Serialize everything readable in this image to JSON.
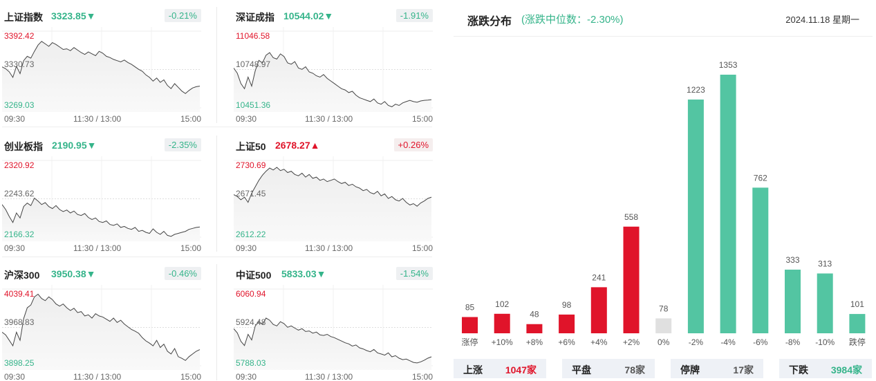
{
  "cards": [
    {
      "name": "上证指数",
      "value": "3323.85",
      "dir": "down",
      "arrow": "▼",
      "change": "-0.21%",
      "hi": "3392.42",
      "mid": "3330.73",
      "lo": "3269.03",
      "series": [
        3335,
        3332,
        3327,
        3318,
        3336,
        3324,
        3345,
        3352,
        3349,
        3360,
        3370,
        3376,
        3372,
        3368,
        3374,
        3371,
        3367,
        3363,
        3364,
        3361,
        3366,
        3362,
        3358,
        3355,
        3359,
        3356,
        3353,
        3360,
        3357,
        3352,
        3350,
        3347,
        3345,
        3343,
        3346,
        3342,
        3339,
        3335,
        3331,
        3328,
        3322,
        3318,
        3312,
        3317,
        3310,
        3314,
        3305,
        3300,
        3308,
        3302,
        3296,
        3292,
        3297,
        3301,
        3303,
        3304
      ]
    },
    {
      "name": "深证成指",
      "value": "10544.02",
      "dir": "down",
      "arrow": "▼",
      "change": "-1.91%",
      "hi": "11046.58",
      "mid": "10748.97",
      "lo": "10451.36",
      "series": [
        10760,
        10720,
        10640,
        10600,
        10690,
        10620,
        10740,
        10820,
        10800,
        10860,
        10880,
        10840,
        10830,
        10870,
        10850,
        10800,
        10790,
        10810,
        10760,
        10750,
        10770,
        10730,
        10720,
        10700,
        10690,
        10710,
        10680,
        10660,
        10640,
        10620,
        10600,
        10590,
        10570,
        10580,
        10550,
        10530,
        10520,
        10510,
        10500,
        10520,
        10490,
        10480,
        10500,
        10470,
        10460,
        10480,
        10470,
        10490,
        10500,
        10510,
        10500,
        10495,
        10505,
        10510,
        10512,
        10515
      ]
    },
    {
      "name": "创业板指",
      "value": "2190.95",
      "dir": "down",
      "arrow": "▼",
      "change": "-2.35%",
      "hi": "2320.92",
      "mid": "2243.62",
      "lo": "2166.32",
      "series": [
        2232,
        2222,
        2208,
        2196,
        2215,
        2205,
        2228,
        2235,
        2230,
        2245,
        2239,
        2232,
        2236,
        2228,
        2224,
        2230,
        2222,
        2218,
        2221,
        2215,
        2219,
        2212,
        2210,
        2214,
        2206,
        2202,
        2205,
        2198,
        2196,
        2199,
        2192,
        2190,
        2193,
        2186,
        2188,
        2184,
        2182,
        2186,
        2178,
        2180,
        2176,
        2174,
        2183,
        2176,
        2172,
        2178,
        2170,
        2168,
        2172,
        2174,
        2176,
        2178,
        2182,
        2184,
        2186,
        2187
      ]
    },
    {
      "name": "上证50",
      "value": "2678.27",
      "dir": "up",
      "arrow": "▲",
      "change": "+0.26%",
      "hi": "2730.69",
      "mid": "2671.45",
      "lo": "2612.22",
      "series": [
        2678,
        2675,
        2670,
        2674,
        2666,
        2680,
        2690,
        2700,
        2708,
        2714,
        2719,
        2716,
        2720,
        2715,
        2717,
        2712,
        2714,
        2709,
        2707,
        2711,
        2705,
        2709,
        2703,
        2705,
        2700,
        2702,
        2698,
        2700,
        2702,
        2698,
        2695,
        2697,
        2692,
        2694,
        2690,
        2688,
        2684,
        2686,
        2681,
        2679,
        2683,
        2676,
        2679,
        2672,
        2675,
        2670,
        2668,
        2672,
        2666,
        2662,
        2664,
        2660,
        2665,
        2668,
        2672,
        2674
      ]
    },
    {
      "name": "沪深300",
      "value": "3950.38",
      "dir": "down",
      "arrow": "▼",
      "change": "-0.46%",
      "hi": "4039.41",
      "mid": "3968.83",
      "lo": "3898.25",
      "series": [
        3960,
        3955,
        3945,
        3935,
        3960,
        3945,
        3985,
        4005,
        4010,
        4025,
        4030,
        4022,
        4018,
        4025,
        4020,
        4012,
        4008,
        4012,
        4005,
        4000,
        4004,
        3996,
        3998,
        3990,
        3992,
        3986,
        3994,
        3990,
        3988,
        3984,
        3980,
        3986,
        3978,
        3982,
        3975,
        3970,
        3965,
        3962,
        3958,
        3950,
        3944,
        3940,
        3935,
        3945,
        3932,
        3938,
        3925,
        3920,
        3930,
        3915,
        3912,
        3908,
        3915,
        3920,
        3925,
        3928
      ]
    },
    {
      "name": "中证500",
      "value": "5833.03",
      "dir": "down",
      "arrow": "▼",
      "change": "-1.54%",
      "hi": "6060.94",
      "mid": "5924.48",
      "lo": "5788.03",
      "series": [
        5920,
        5905,
        5875,
        5860,
        5900,
        5880,
        5930,
        5945,
        5935,
        5958,
        5950,
        5935,
        5930,
        5945,
        5938,
        5925,
        5930,
        5922,
        5915,
        5920,
        5910,
        5912,
        5904,
        5908,
        5898,
        5896,
        5900,
        5892,
        5888,
        5882,
        5876,
        5870,
        5866,
        5858,
        5862,
        5852,
        5848,
        5842,
        5838,
        5846,
        5834,
        5830,
        5826,
        5834,
        5820,
        5824,
        5815,
        5810,
        5812,
        5806,
        5800,
        5798,
        5802,
        5808,
        5815,
        5820
      ]
    }
  ],
  "time_labels": {
    "start": "09:30",
    "mid": "11:30 / 13:00",
    "end": "15:00"
  },
  "distribution": {
    "title": "涨跌分布",
    "subtitle": "(涨跌中位数：-2.30%)",
    "date": "2024.11.18 星期一"
  },
  "chart_data": {
    "type": "bar",
    "title": "涨跌分布",
    "categories": [
      "涨停",
      "+10%",
      "+8%",
      "+6%",
      "+4%",
      "+2%",
      "0%",
      "-2%",
      "-4%",
      "-6%",
      "-8%",
      "-10%",
      "跌停"
    ],
    "values": [
      85,
      102,
      48,
      98,
      241,
      558,
      78,
      1223,
      1353,
      762,
      333,
      313,
      101
    ],
    "colors": [
      "#e0142a",
      "#e0142a",
      "#e0142a",
      "#e0142a",
      "#e0142a",
      "#e0142a",
      "#e0e0e0",
      "#53c5a2",
      "#53c5a2",
      "#53c5a2",
      "#53c5a2",
      "#53c5a2",
      "#53c5a2"
    ],
    "ylim": [
      0,
      1353
    ],
    "grid": false
  },
  "summary": [
    {
      "label": "上涨",
      "value": "1047家",
      "color": "#e0142a"
    },
    {
      "label": "平盘",
      "value": "78家",
      "color": "#555555"
    },
    {
      "label": "停牌",
      "value": "17家",
      "color": "#555555"
    },
    {
      "label": "下跌",
      "value": "3984家",
      "color": "#35b48a"
    }
  ]
}
